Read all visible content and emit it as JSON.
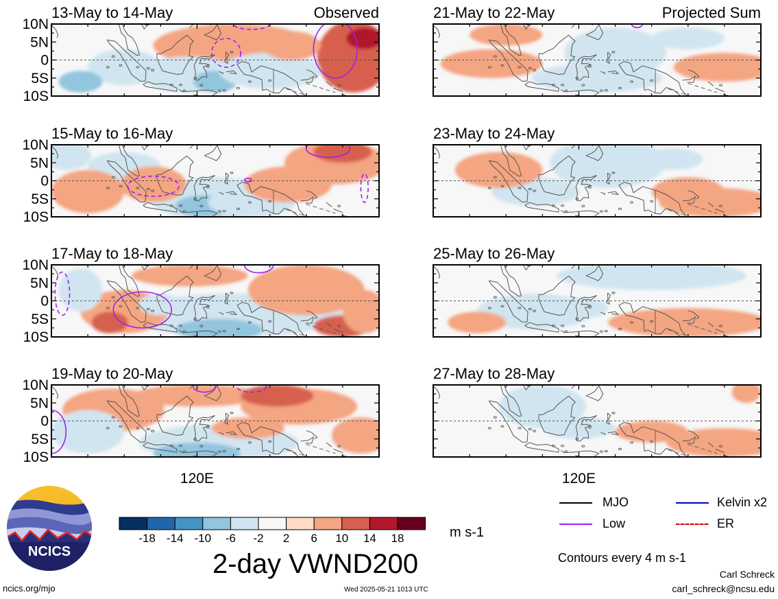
{
  "chart_data": {
    "type": "heatmap",
    "variable_title": "2-day VWND200",
    "units": "m s-1",
    "contour_note": "Contours every 4 m s-1",
    "colorbar": {
      "ticks": [
        "-18",
        "-14",
        "-10",
        "-6",
        "-2",
        "2",
        "6",
        "10",
        "14",
        "18"
      ],
      "colors": [
        "#053061",
        "#2166ac",
        "#4393c3",
        "#92c5de",
        "#d1e5f0",
        "#f7f7f7",
        "#fddbc7",
        "#f4a582",
        "#d6604d",
        "#b2182b",
        "#67001f"
      ]
    },
    "lat_ticks": [
      "10N",
      "5N",
      "0",
      "5S",
      "10S"
    ],
    "lon_tick": "120E",
    "panels": [
      {
        "id": "obs1",
        "label": "13-May to 14-May",
        "tag": "Observed"
      },
      {
        "id": "obs2",
        "label": "15-May to 16-May",
        "tag": ""
      },
      {
        "id": "obs3",
        "label": "17-May to 18-May",
        "tag": ""
      },
      {
        "id": "obs4",
        "label": "19-May to 20-May",
        "tag": ""
      },
      {
        "id": "prj1",
        "label": "21-May to 22-May",
        "tag": "Projected Sum"
      },
      {
        "id": "prj2",
        "label": "23-May to 24-May",
        "tag": ""
      },
      {
        "id": "prj3",
        "label": "25-May to 26-May",
        "tag": ""
      },
      {
        "id": "prj4",
        "label": "27-May to 28-May",
        "tag": ""
      }
    ],
    "legend": [
      {
        "name": "MJO",
        "color": "#000000",
        "dashed": false
      },
      {
        "name": "Kelvin x2",
        "color": "#0000cc",
        "dashed": false
      },
      {
        "name": "Low",
        "color": "#a020f0",
        "dashed": false
      },
      {
        "name": "ER",
        "color": "#cc0000",
        "dashed": true
      }
    ]
  },
  "logo": {
    "text": "NCICS"
  },
  "footer": {
    "url": "ncics.org/mjo",
    "timestamp": "Wed 2025-05-21 1013 UTC",
    "author": "Carl Schreck",
    "email": "carl_schreck@ncsu.edu"
  }
}
